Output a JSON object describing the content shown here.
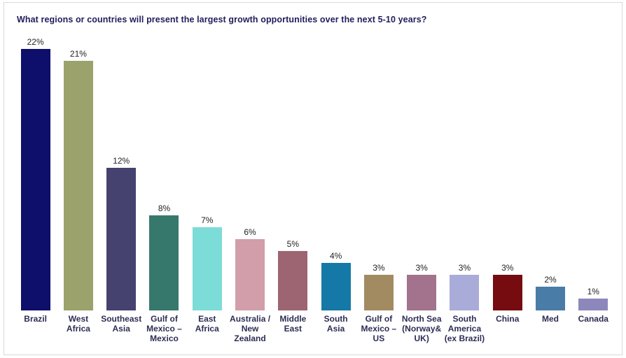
{
  "title": "What regions or countries will present the largest growth opportunities over the next 5-10 years?",
  "chart_data": {
    "type": "bar",
    "title": "What regions or countries will present the largest growth opportunities over the next 5-10 years?",
    "xlabel": "",
    "ylabel": "",
    "ylim": [
      0,
      24
    ],
    "grid": false,
    "legend": "none",
    "categories": [
      "Brazil",
      "West Africa",
      "Southeast Asia",
      "Gulf of Mexico – Mexico",
      "East Africa",
      "Australia / New Zealand",
      "Middle East",
      "South Asia",
      "Gulf of Mexico – US",
      "North Sea (Norway& UK)",
      "South America (ex Brazil)",
      "China",
      "Med",
      "Canada"
    ],
    "values": [
      22,
      21,
      12,
      8,
      7,
      6,
      5,
      4,
      3,
      3,
      3,
      3,
      2,
      1
    ],
    "value_labels": [
      "22%",
      "21%",
      "12%",
      "8%",
      "7%",
      "6%",
      "5%",
      "4%",
      "3%",
      "3%",
      "3%",
      "3%",
      "2%",
      "1%"
    ],
    "colors": [
      "#0e0e6b",
      "#9ba26b",
      "#454270",
      "#37786c",
      "#7cdcd7",
      "#d19ea9",
      "#9d6571",
      "#1579a7",
      "#a28b61",
      "#a3728d",
      "#a9abd8",
      "#760c10",
      "#497ca6",
      "#8c88bb"
    ]
  }
}
